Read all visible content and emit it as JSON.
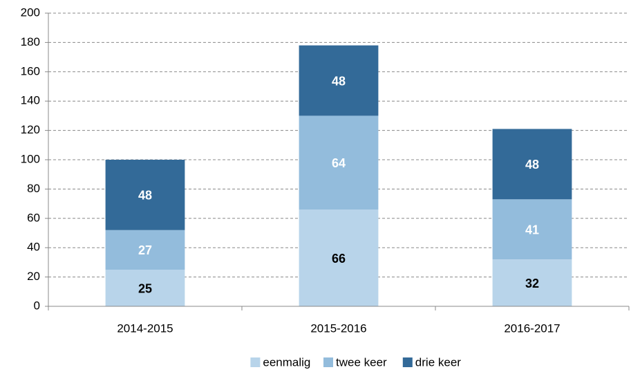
{
  "chart_data": {
    "type": "stacked_bar",
    "categories": [
      "2014-2015",
      "2015-2016",
      "2016-2017"
    ],
    "series": [
      {
        "name": "eenmalig",
        "color": "#b8d4ea",
        "label_color": "#000000",
        "values": [
          25,
          66,
          32
        ]
      },
      {
        "name": "twee keer",
        "color": "#93bcdc",
        "label_color": "#ffffff",
        "values": [
          27,
          64,
          41
        ]
      },
      {
        "name": "drie keer",
        "color": "#336a98",
        "label_color": "#ffffff",
        "values": [
          48,
          48,
          48
        ]
      }
    ],
    "ylim": [
      0,
      200
    ],
    "yticks": [
      0,
      20,
      40,
      60,
      80,
      100,
      120,
      140,
      160,
      180,
      200
    ],
    "grid": true,
    "legend": "bottom"
  }
}
